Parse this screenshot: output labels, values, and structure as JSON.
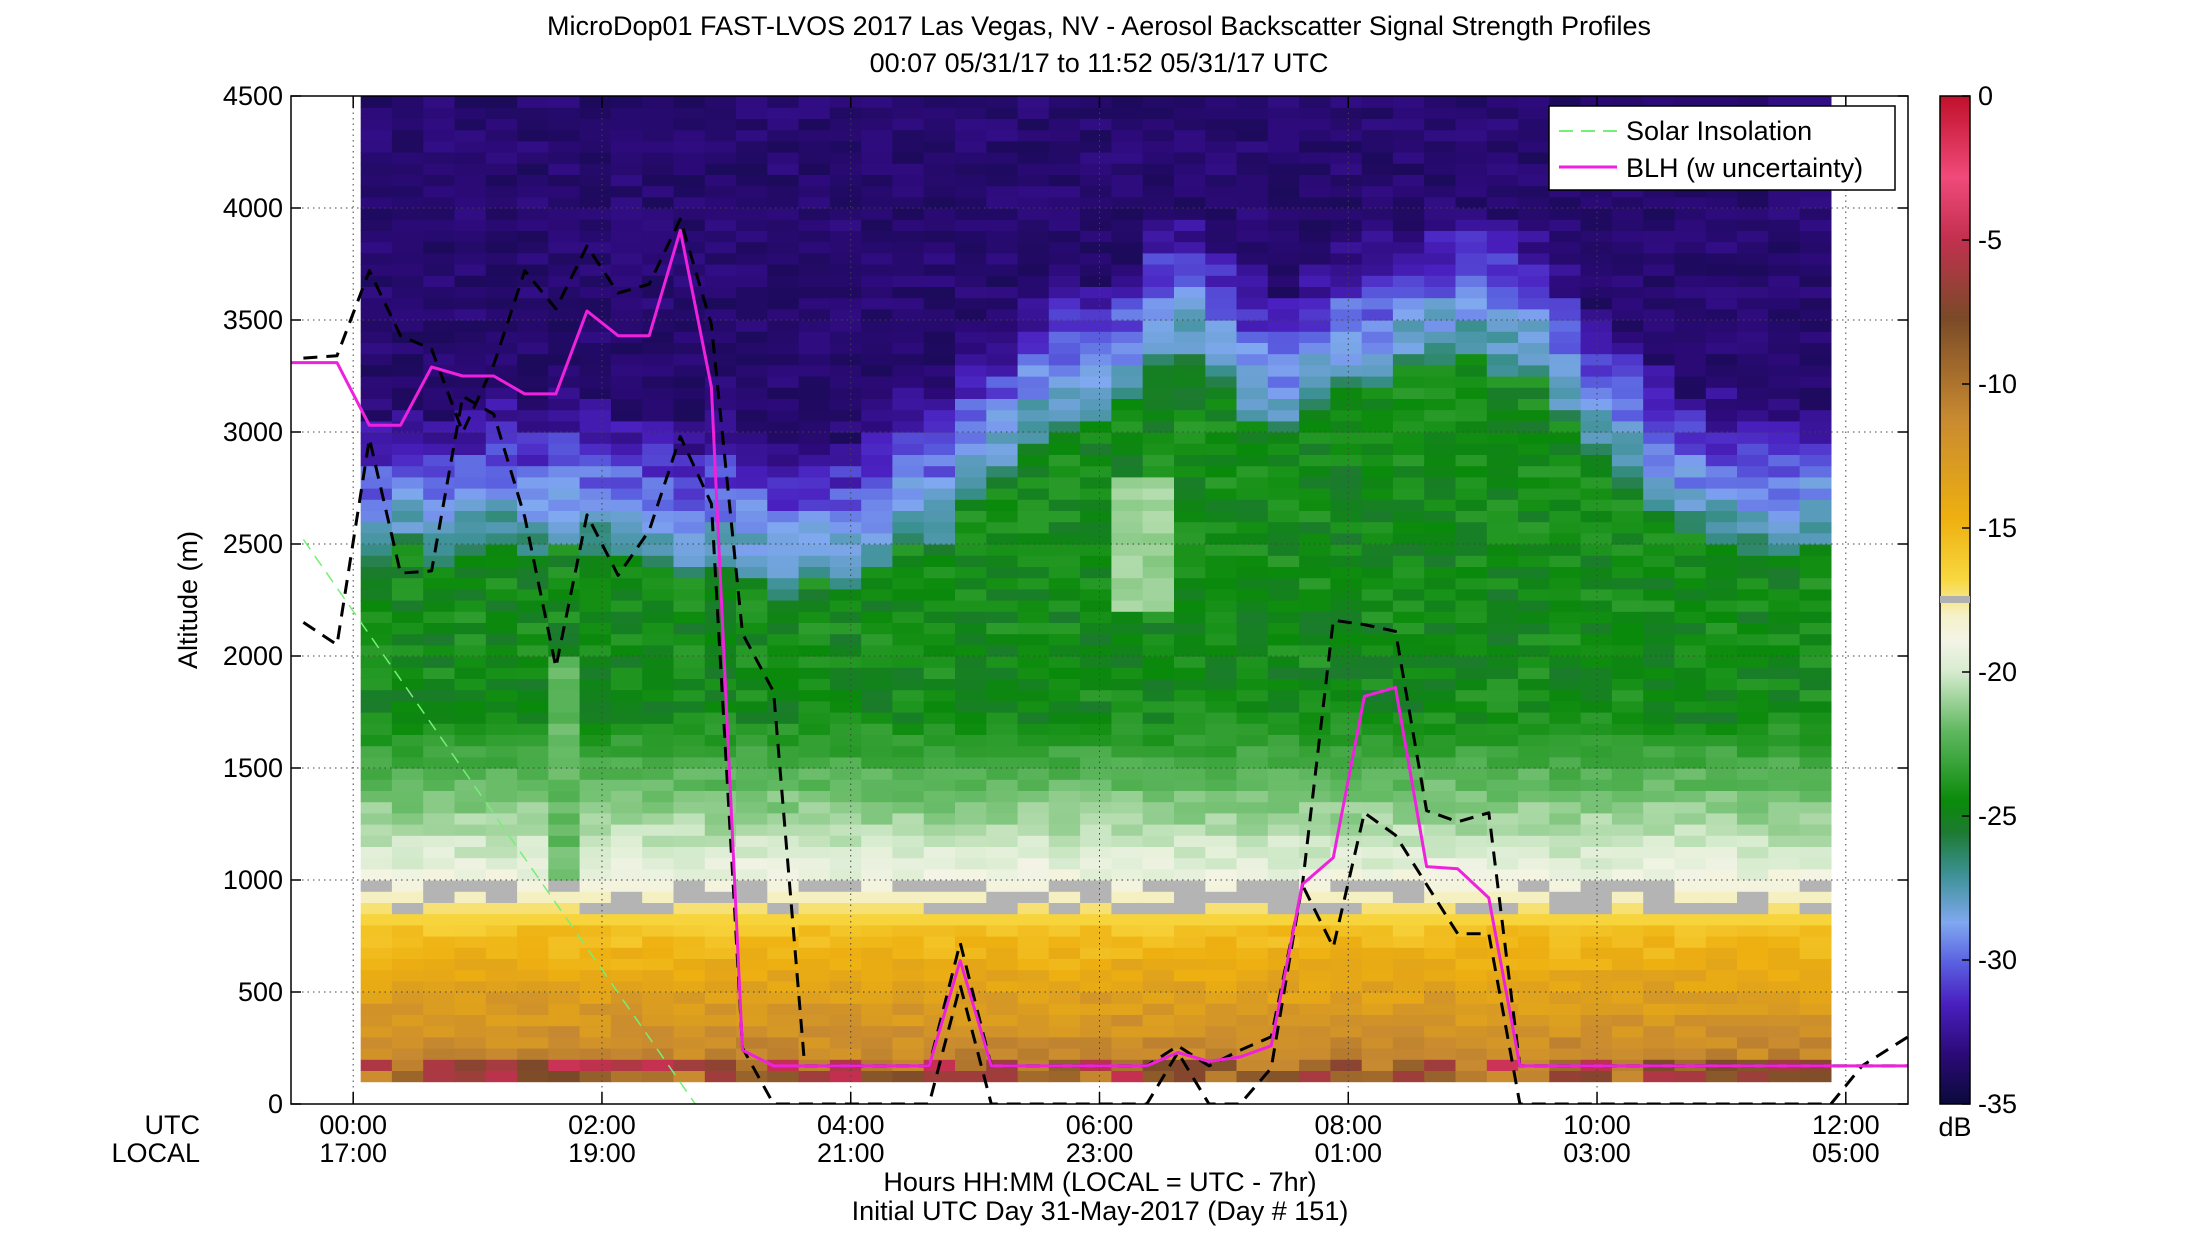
{
  "chart_data": {
    "type": "heatmap",
    "title": "MicroDop01 FAST-LVOS 2017 Las Vegas, NV - Aerosol Backscatter Signal Strength Profiles",
    "subtitle": "00:07 05/31/17 to 11:52 05/31/17  UTC",
    "ylabel": "Altitude (m)",
    "xlabel": "Hours HH:MM  (LOCAL = UTC - 7hr)",
    "footnote": "Initial UTC Day 31-May-2017 (Day # 151)",
    "row_labels": [
      "UTC",
      "LOCAL"
    ],
    "xlim_hours_utc": [
      -0.5,
      12.5
    ],
    "ylim": [
      0,
      4500
    ],
    "y_ticks": [
      0,
      500,
      1000,
      1500,
      2000,
      2500,
      3000,
      3500,
      4000,
      4500
    ],
    "x_ticks": [
      {
        "utc_hour": 0,
        "utc": "00:00",
        "local": "17:00"
      },
      {
        "utc_hour": 2,
        "utc": "02:00",
        "local": "19:00"
      },
      {
        "utc_hour": 4,
        "utc": "04:00",
        "local": "21:00"
      },
      {
        "utc_hour": 6,
        "utc": "06:00",
        "local": "23:00"
      },
      {
        "utc_hour": 8,
        "utc": "08:00",
        "local": "01:00"
      },
      {
        "utc_hour": 10,
        "utc": "10:00",
        "local": "03:00"
      },
      {
        "utc_hour": 12,
        "utc": "12:00",
        "local": "05:00"
      }
    ],
    "grid": true,
    "legend_position": "top-right",
    "colorbar": {
      "unit": "dB",
      "ticks": [
        "0",
        "-5",
        "-10",
        "-15",
        "-20",
        "-25",
        "-30",
        "-35"
      ],
      "range": [
        -35,
        0
      ]
    },
    "series": [
      {
        "name": "Solar Insolation",
        "color": "#77ee77",
        "style": "dashed",
        "x_hours_utc": [
          -0.4,
          2.75
        ],
        "y": [
          2520,
          0
        ]
      },
      {
        "name": "BLH (w uncertainty)",
        "color": "#ee22dd",
        "style": "solid",
        "x_hours_utc": [
          -0.5,
          -0.13,
          0.13,
          0.38,
          0.63,
          0.88,
          1.13,
          1.38,
          1.63,
          1.88,
          2.13,
          2.38,
          2.63,
          2.88,
          3.13,
          3.38,
          3.63,
          3.88,
          4.13,
          4.38,
          4.63,
          4.88,
          5.13,
          5.38,
          5.63,
          5.88,
          6.13,
          6.38,
          6.63,
          6.88,
          7.13,
          7.38,
          7.63,
          7.88,
          8.13,
          8.38,
          8.63,
          8.88,
          9.13,
          9.38,
          9.63,
          9.88,
          10.13,
          10.38,
          10.63,
          10.88,
          11.13,
          11.38,
          11.63,
          11.88,
          12.13,
          12.5
        ],
        "y": [
          3310,
          3310,
          3030,
          3030,
          3290,
          3250,
          3250,
          3170,
          3170,
          3540,
          3430,
          3430,
          3900,
          3200,
          240,
          170,
          170,
          170,
          170,
          170,
          170,
          640,
          170,
          170,
          170,
          170,
          170,
          170,
          230,
          190,
          210,
          260,
          980,
          1100,
          1820,
          1860,
          1060,
          1050,
          920,
          170,
          170,
          170,
          170,
          170,
          170,
          170,
          170,
          170,
          170,
          170,
          170,
          170
        ]
      },
      {
        "name": "",
        "color": "#000000",
        "style": "dashed",
        "x_hours_utc": [
          -0.4,
          -0.13,
          0.13,
          0.38,
          0.63,
          0.88,
          1.13,
          1.38,
          1.63,
          1.88,
          2.13,
          2.38,
          2.63,
          2.88,
          3.13,
          3.38,
          3.63,
          3.88,
          4.13,
          4.38,
          4.63,
          4.88,
          5.13,
          5.38,
          5.63,
          5.88,
          6.13,
          6.38,
          6.63,
          6.88,
          7.13,
          7.38,
          7.63,
          7.88,
          8.13,
          8.38,
          8.63,
          8.88,
          9.13,
          9.38,
          9.63,
          9.88,
          10.13,
          10.38,
          10.63,
          10.88,
          11.13,
          11.38,
          11.63,
          11.88,
          12.13,
          12.5
        ],
        "y": [
          3330,
          3340,
          3720,
          3430,
          3370,
          3000,
          3300,
          3720,
          3550,
          3830,
          3620,
          3660,
          3950,
          3480,
          2100,
          1840,
          170,
          170,
          170,
          170,
          170,
          720,
          170,
          170,
          170,
          170,
          170,
          170,
          260,
          170,
          240,
          300,
          970,
          2160,
          2140,
          2110,
          1310,
          1260,
          1300,
          170,
          170,
          170,
          170,
          170,
          170,
          170,
          170,
          170,
          170,
          170,
          170,
          300
        ]
      },
      {
        "name": "",
        "color": "#000000",
        "style": "dashed",
        "x_hours_utc": [
          -0.4,
          -0.13,
          0.13,
          0.38,
          0.63,
          0.88,
          1.13,
          1.38,
          1.63,
          1.88,
          2.13,
          2.38,
          2.63,
          2.88,
          3.13,
          3.38,
          3.63,
          3.88,
          4.13,
          4.38,
          4.63,
          4.88,
          5.13,
          5.38,
          5.63,
          5.88,
          6.13,
          6.38,
          6.63,
          6.88,
          7.13,
          7.38,
          7.63,
          7.88,
          8.13,
          8.38,
          8.63,
          8.88,
          9.13,
          9.38,
          9.63,
          9.88,
          10.13,
          10.38,
          10.63,
          10.88,
          11.13,
          11.38,
          11.63,
          11.88,
          12.13,
          12.5
        ],
        "y": [
          2150,
          2050,
          2970,
          2370,
          2380,
          3160,
          3080,
          2620,
          1950,
          2630,
          2360,
          2560,
          2980,
          2680,
          250,
          0,
          0,
          0,
          0,
          0,
          0,
          530,
          0,
          0,
          0,
          0,
          0,
          0,
          230,
          0,
          0,
          160,
          980,
          700,
          1300,
          1200,
          980,
          760,
          760,
          0,
          0,
          0,
          0,
          0,
          0,
          0,
          0,
          0,
          0,
          0,
          170,
          170
        ]
      }
    ]
  }
}
